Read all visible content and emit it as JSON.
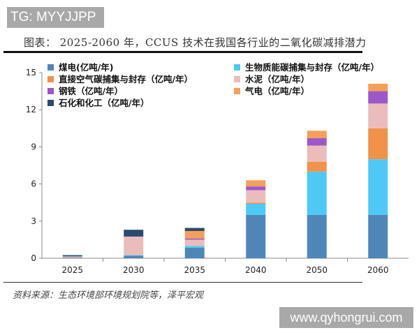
{
  "tag": "TG: MYYJJPP",
  "source": "资料来源：生态环境部环境规划院等，泽平宏观",
  "watermark": "www.qyhongrui.com",
  "chart_data": {
    "type": "bar",
    "stacked": true,
    "title": "图表： 2025-2060 年，CCUS 技术在我国各行业的二氧化碳减排潜力",
    "xlabel": "",
    "ylabel": "",
    "ylim": [
      0,
      15
    ],
    "yticks": [
      0,
      3,
      6,
      9,
      12,
      15
    ],
    "grid": false,
    "legend_position": "top-left",
    "categories": [
      "2025",
      "2030",
      "2035",
      "2040",
      "2050",
      "2060"
    ],
    "series": [
      {
        "name": "煤电(亿吨/年)",
        "color": "#4f86b8",
        "values": [
          0.05,
          0.2,
          0.85,
          3.5,
          3.5,
          3.5
        ]
      },
      {
        "name": "生物质能碳捕集与封存（亿吨/年）",
        "color": "#4fc8f5",
        "values": [
          0,
          0.05,
          0.15,
          0.9,
          3.5,
          4.5
        ]
      },
      {
        "name": "直接空气碳捕集与封存（亿吨/年）",
        "color": "#f0924a",
        "values": [
          0,
          0,
          0,
          0.1,
          0.8,
          2.5
        ]
      },
      {
        "name": "水泥（亿吨/年）",
        "color": "#ebbcbc",
        "values": [
          0.1,
          1.5,
          0.5,
          1.0,
          1.3,
          2.0
        ]
      },
      {
        "name": "钢铁（亿吨/年）",
        "color": "#9b59c8",
        "values": [
          0,
          0,
          0.1,
          0.3,
          0.6,
          1.0
        ]
      },
      {
        "name": "气电（亿吨/年）",
        "color": "#f5a05a",
        "values": [
          0,
          0,
          0.6,
          0.5,
          0.6,
          0.6
        ]
      },
      {
        "name": "石化和化工（亿吨/年）",
        "color": "#2b4a70",
        "values": [
          0.1,
          0.55,
          0.25,
          0,
          0,
          0
        ]
      }
    ]
  }
}
